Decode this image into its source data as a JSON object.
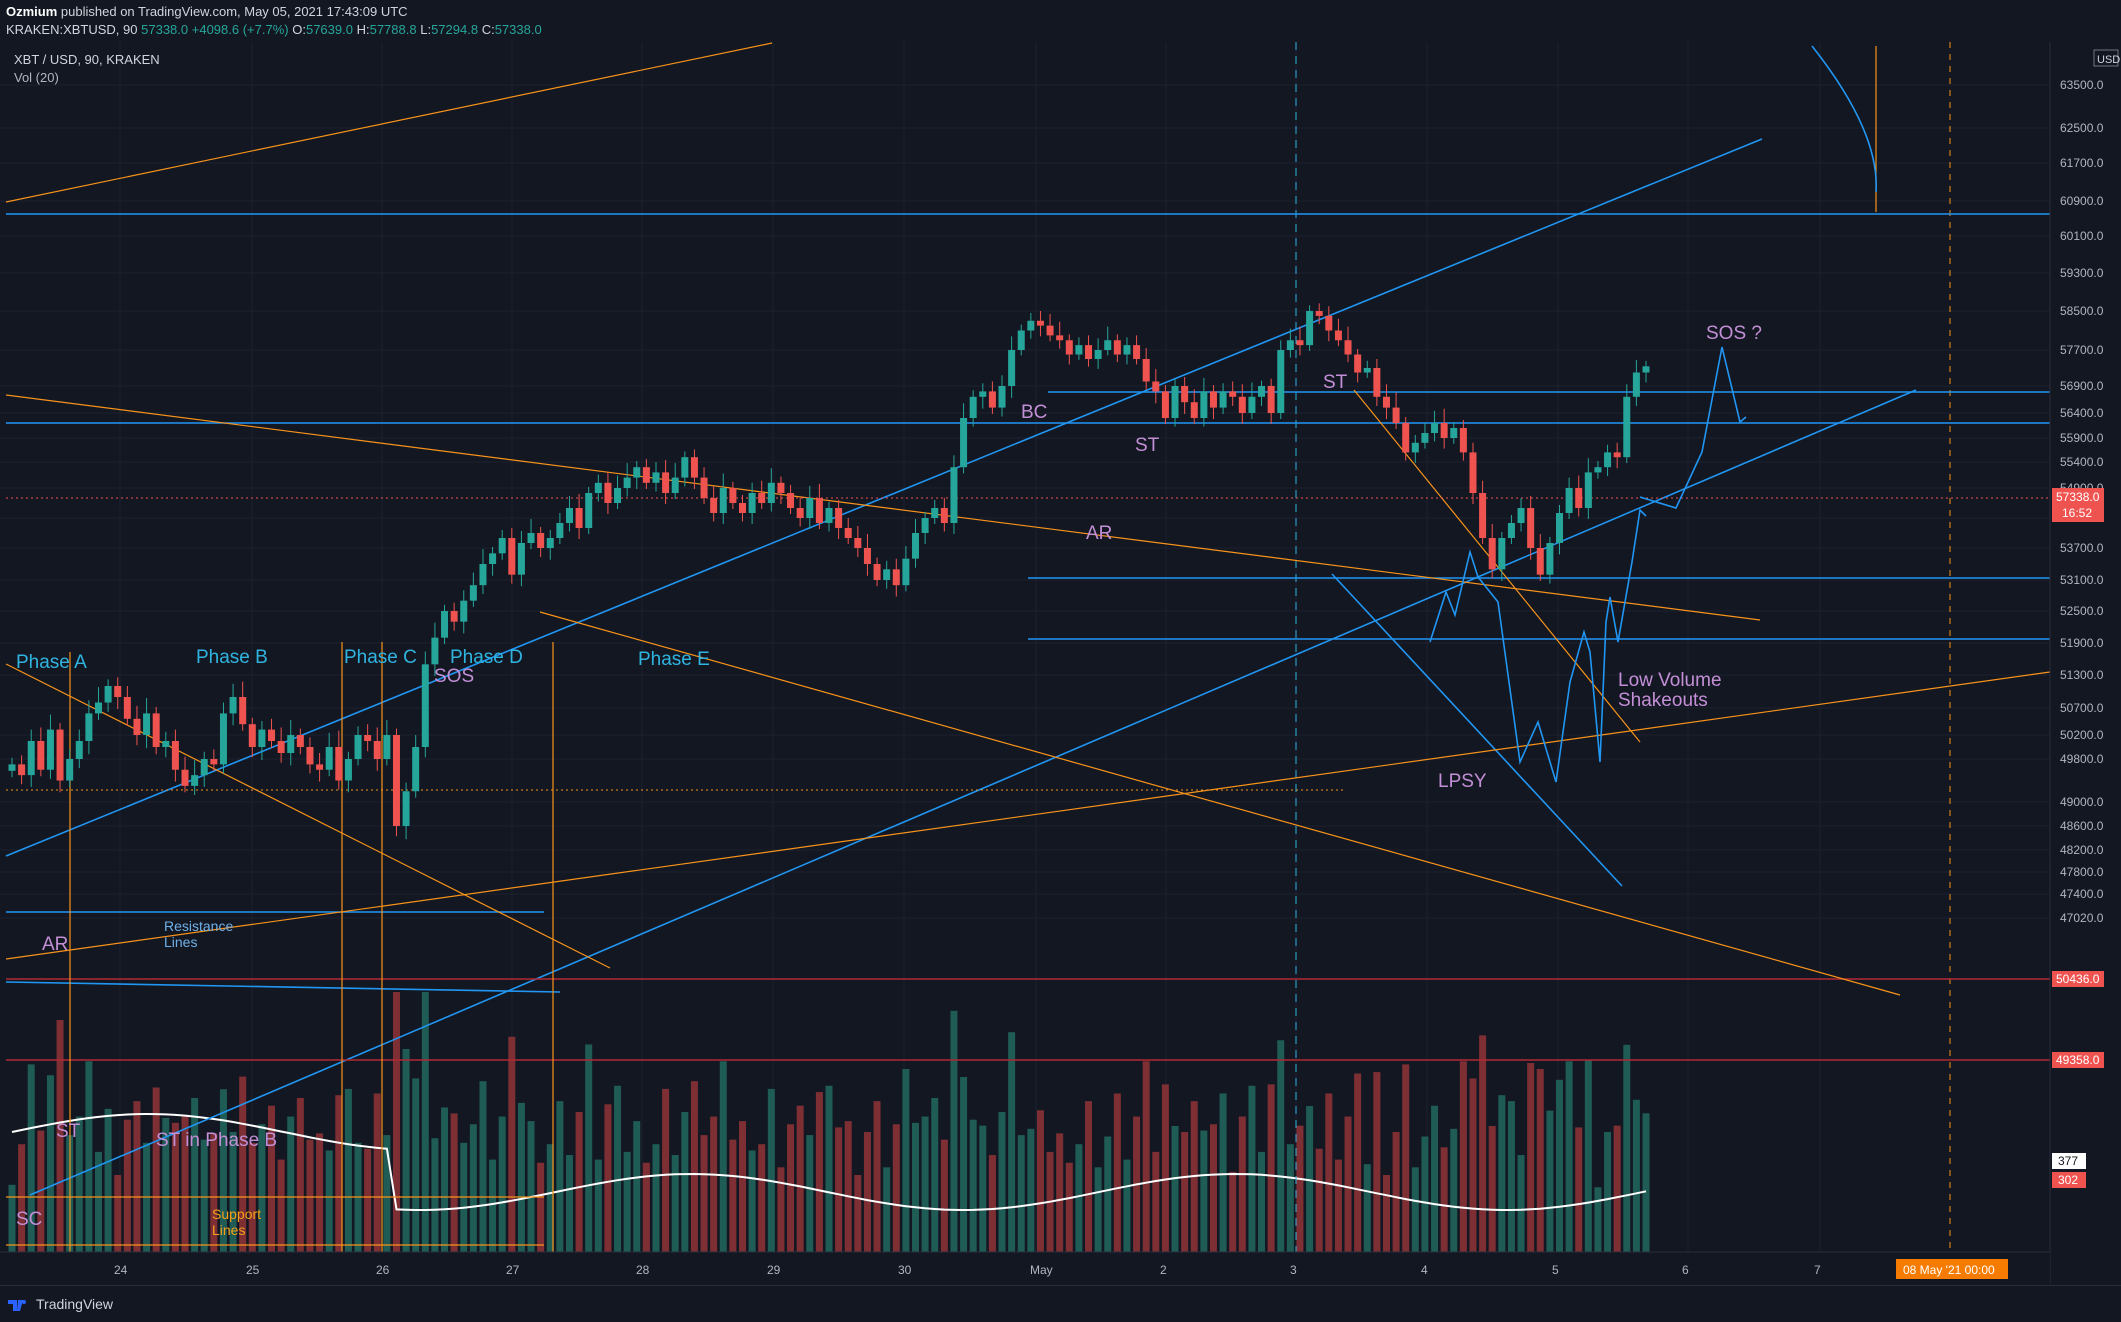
{
  "header": {
    "author": "Ozmium",
    "published": "published on TradingView.com, May 05, 2021 17:43:09 UTC",
    "symbol_line": "KRAKEN:XBTUSD, 90",
    "last": "57338.0",
    "change": "+4098.6 (+7.7%)",
    "o_label": "O:",
    "o_val": "57639.0",
    "h_label": "H:",
    "h_val": "57788.8",
    "l_label": "L:",
    "l_val": "57294.8",
    "c_label": "C:",
    "c_val": "57338.0"
  },
  "legend": {
    "pair": "XBT / USD, 90, KRAKEN",
    "vol": "Vol (20)"
  },
  "footer": {
    "brand": "TradingView"
  },
  "colors": {
    "up": "#26a69a",
    "down": "#ef5350",
    "blue": "#2196f3",
    "orange": "#f7931a",
    "label": "#c38fd6",
    "cyan": "#2fb4e0"
  },
  "chart_data": {
    "type": "candlestick",
    "ylabel": "USD",
    "price_axis_ticks": [
      "63500.0",
      "62500.0",
      "61700.0",
      "60900.0",
      "60100.0",
      "59300.0",
      "58500.0",
      "57700.0",
      "56900.0",
      "56400.0",
      "55900.0",
      "55400.0",
      "54900.0",
      "54300.0",
      "53700.0",
      "53100.0",
      "52500.0",
      "51900.0",
      "51300.0",
      "50700.0",
      "50200.0",
      "49800.0",
      "49000.0",
      "48600.0",
      "48200.0",
      "47800.0",
      "47400.0",
      "47020.0"
    ],
    "time_axis_ticks": [
      "24",
      "25",
      "26",
      "27",
      "28",
      "29",
      "30",
      "May",
      "2",
      "3",
      "4",
      "5",
      "6",
      "7"
    ],
    "price_tags": {
      "last": "57338.0",
      "countdown": "16:52",
      "level1": "50436.0",
      "level2": "49358.0",
      "vol_ma": "377",
      "vol_last": "302",
      "date_tag": "08 May '21  00:00"
    },
    "annotations": {
      "phase_a": "Phase A",
      "phase_b": "Phase B",
      "phase_c": "Phase C",
      "phase_d": "Phase D",
      "phase_e": "Phase E",
      "sos1": "SOS",
      "ar1": "AR",
      "resistance": "Resistance\nLines",
      "st1": "ST",
      "st_phase_b": "ST in Phase B",
      "sc": "SC",
      "support": "Support\nLines",
      "bc": "BC",
      "st2": "ST",
      "ar2": "AR",
      "st3": "ST",
      "lpsy": "LPSY",
      "low_volume": "Low Volume\nShakeouts",
      "sos2": "SOS ?"
    },
    "candles_close": [
      49700,
      49500,
      50100,
      49600,
      50300,
      49400,
      49800,
      50100,
      50600,
      50800,
      51100,
      50900,
      50500,
      50200,
      50600,
      50000,
      50100,
      49600,
      49300,
      49500,
      49800,
      49700,
      50600,
      50900,
      50400,
      50000,
      50300,
      50100,
      49900,
      50200,
      50000,
      49700,
      49600,
      50000,
      49400,
      49800,
      50200,
      50100,
      49800,
      50200,
      48600,
      49200,
      50000,
      51500,
      52000,
      52500,
      52300,
      52700,
      53000,
      53400,
      53600,
      53900,
      53200,
      53800,
      54000,
      53700,
      53900,
      54200,
      54500,
      54100,
      54800,
      55000,
      54600,
      54900,
      55100,
      55300,
      55000,
      55200,
      54800,
      55100,
      55500,
      55100,
      54700,
      54400,
      54900,
      54600,
      54400,
      54800,
      54600,
      55000,
      54800,
      54500,
      54300,
      54700,
      54200,
      54500,
      54100,
      53900,
      53700,
      53400,
      53100,
      53300,
      53000,
      53500,
      54000,
      54300,
      54500,
      54200,
      55300,
      56300,
      56700,
      56800,
      56500,
      56900,
      57700,
      58100,
      58300,
      58200,
      58000,
      57900,
      57600,
      57800,
      57500,
      57700,
      57900,
      57600,
      57800,
      57500,
      57000,
      56800,
      56300,
      56900,
      56600,
      56300,
      56800,
      56500,
      56800,
      56700,
      56400,
      56700,
      56900,
      56400,
      57700,
      57900,
      57800,
      58500,
      58400,
      58100,
      57900,
      57600,
      57200,
      57300,
      56700,
      56500,
      56200,
      55600,
      55800,
      56000,
      56200,
      55900,
      56100,
      55600,
      54800,
      53900,
      53300,
      53900,
      54200,
      54500,
      53700,
      53200,
      53800,
      54400,
      54900,
      54500,
      55200,
      55300,
      55600,
      55500,
      56700,
      57200,
      57338
    ],
    "volume_ma_last": 377,
    "volume_last": 302
  }
}
